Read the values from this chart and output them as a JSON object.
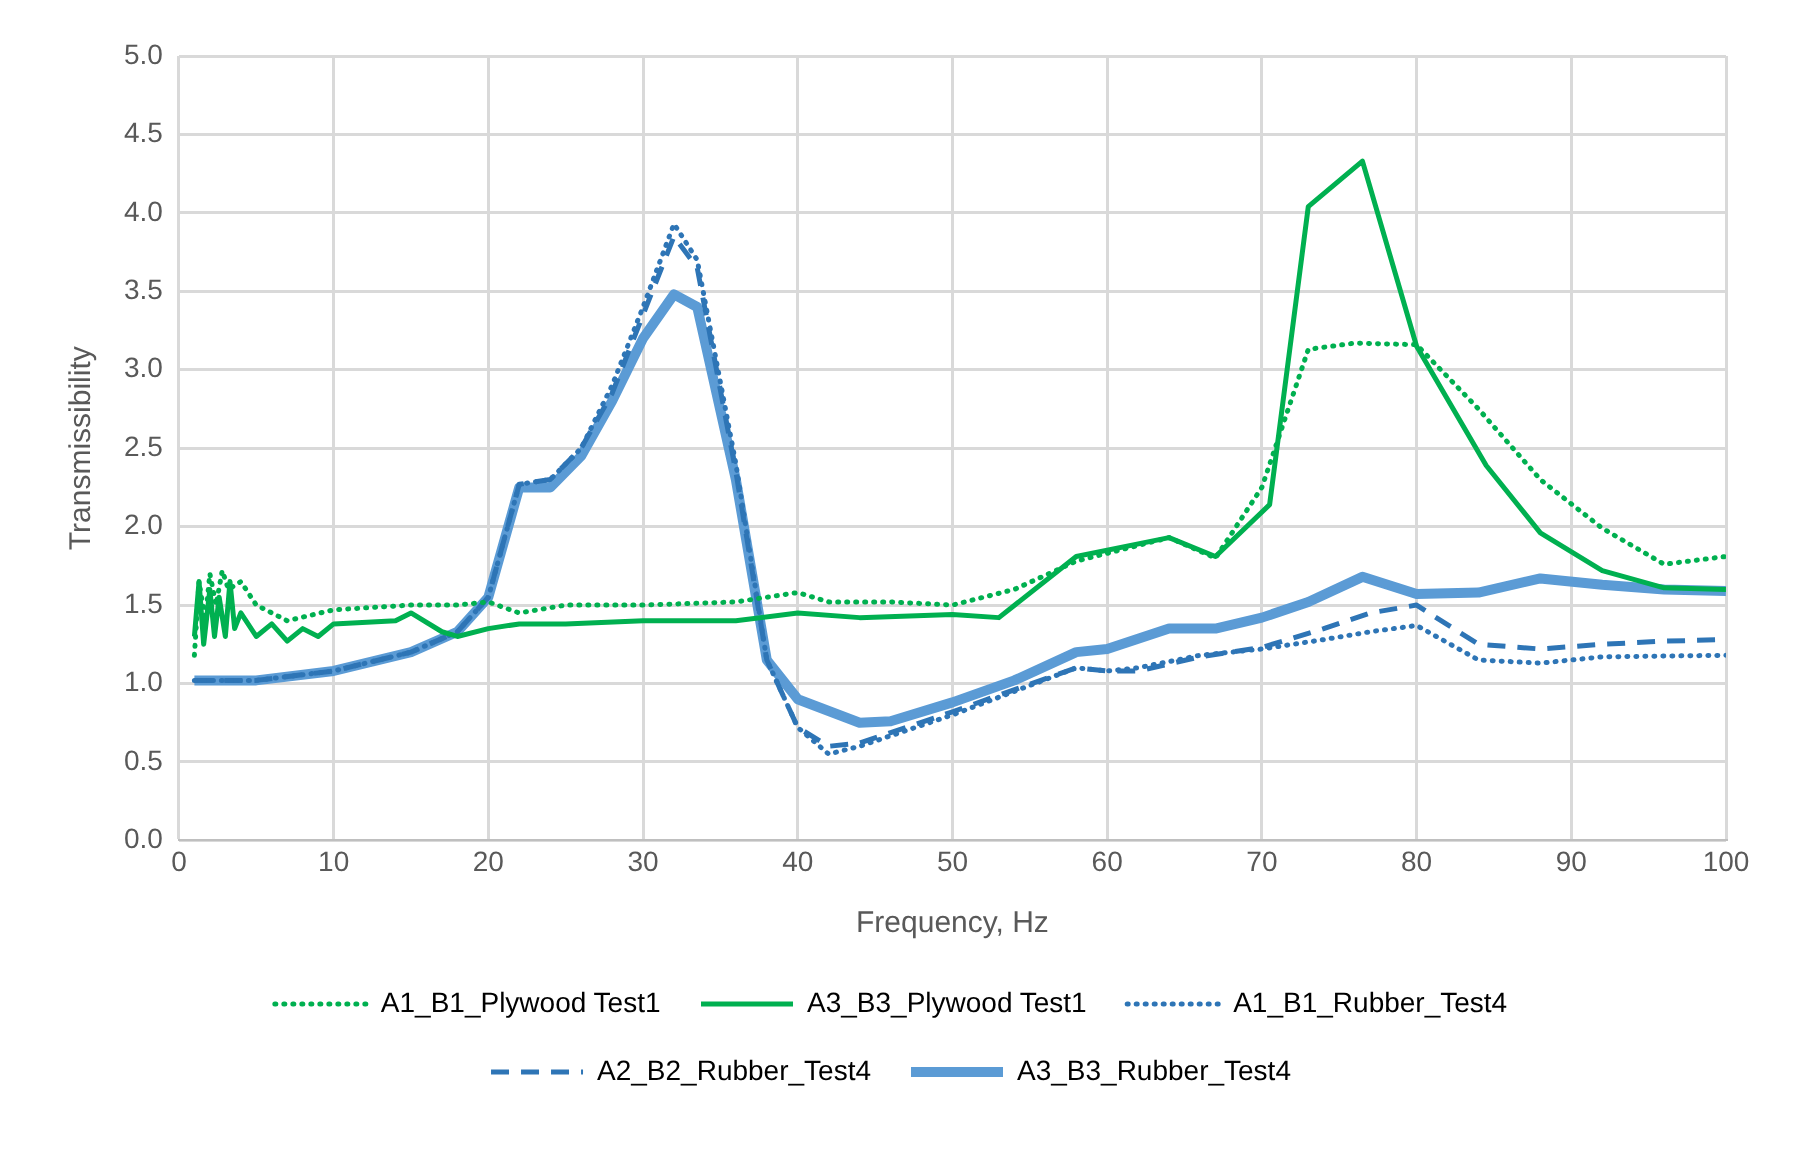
{
  "chart_data": {
    "type": "line",
    "xlabel": "Frequency, Hz",
    "ylabel": "Transmissibility",
    "xlim": [
      0,
      100
    ],
    "xticks": [
      0,
      10,
      20,
      30,
      40,
      50,
      60,
      70,
      80,
      90,
      100
    ],
    "ylim": [
      0,
      5
    ],
    "yticks": [
      {
        "value": 0,
        "label": "0.0"
      },
      {
        "value": 0.5,
        "label": "0.5"
      },
      {
        "value": 1,
        "label": "1.0"
      },
      {
        "value": 1.5,
        "label": "1.5"
      },
      {
        "value": 2,
        "label": "2.0"
      },
      {
        "value": 2.5,
        "label": "2.5"
      },
      {
        "value": 3,
        "label": "3.0"
      },
      {
        "value": 3.5,
        "label": "3.5"
      },
      {
        "value": 4,
        "label": "4.0"
      },
      {
        "value": 4.5,
        "label": "4.5"
      },
      {
        "value": 5,
        "label": "5.0"
      }
    ],
    "grid": true,
    "legend": "bottom",
    "marker": "none",
    "series": [
      {
        "name": "A1_B1_Plywood Test1",
        "color": "#00b050",
        "line_style": "dotted",
        "x": [
          1,
          1.3,
          1.7,
          2,
          2.4,
          2.8,
          3.2,
          4,
          5,
          7,
          10,
          15,
          18,
          20,
          22,
          25,
          30,
          36,
          38,
          40,
          42,
          46,
          50,
          54,
          58,
          60,
          64,
          67,
          70,
          73,
          76,
          80,
          84,
          88,
          92,
          96,
          100
        ],
        "values": [
          1.18,
          1.65,
          1.4,
          1.7,
          1.5,
          1.72,
          1.6,
          1.65,
          1.5,
          1.4,
          1.47,
          1.5,
          1.5,
          1.52,
          1.45,
          1.5,
          1.5,
          1.52,
          1.55,
          1.58,
          1.52,
          1.52,
          1.5,
          1.6,
          1.78,
          1.83,
          1.93,
          1.8,
          2.25,
          3.13,
          3.17,
          3.16,
          2.75,
          2.3,
          1.99,
          1.76,
          1.81
        ]
      },
      {
        "name": "A3_B3_Plywood Test1",
        "color": "#00b050",
        "line_style": "solid",
        "x": [
          1,
          1.3,
          1.6,
          2,
          2.3,
          2.6,
          3,
          3.3,
          3.6,
          4,
          5,
          6,
          7,
          8,
          9,
          10,
          14,
          15,
          17,
          18,
          20,
          22,
          25,
          30,
          36,
          40,
          44,
          50,
          53,
          58,
          64,
          67,
          70.5,
          73,
          76.5,
          80,
          84.5,
          88,
          92,
          96,
          100
        ],
        "values": [
          1.3,
          1.65,
          1.25,
          1.6,
          1.3,
          1.55,
          1.3,
          1.65,
          1.35,
          1.45,
          1.3,
          1.38,
          1.27,
          1.35,
          1.3,
          1.38,
          1.4,
          1.45,
          1.33,
          1.3,
          1.35,
          1.38,
          1.38,
          1.4,
          1.4,
          1.45,
          1.42,
          1.44,
          1.42,
          1.81,
          1.93,
          1.81,
          2.14,
          4.04,
          4.33,
          3.15,
          2.39,
          1.96,
          1.72,
          1.61,
          1.6
        ]
      },
      {
        "name": "A1_B1_Rubber_Test4",
        "color": "#2e75b6",
        "line_style": "dotted",
        "x": [
          1,
          5,
          10,
          15,
          18,
          20,
          22,
          24,
          26,
          28,
          30,
          32,
          33.5,
          36,
          38,
          40,
          42,
          44,
          50,
          58,
          60,
          62,
          66,
          70,
          74,
          77,
          80,
          84,
          88,
          92,
          100
        ],
        "values": [
          1.02,
          1.02,
          1.08,
          1.2,
          1.33,
          1.55,
          2.27,
          2.3,
          2.5,
          2.9,
          3.4,
          3.93,
          3.7,
          2.4,
          1.15,
          0.72,
          0.55,
          0.6,
          0.8,
          1.1,
          1.08,
          1.1,
          1.18,
          1.22,
          1.28,
          1.33,
          1.37,
          1.15,
          1.13,
          1.17,
          1.18
        ]
      },
      {
        "name": "A2_B2_Rubber_Test4",
        "color": "#2e75b6",
        "line_style": "dashed",
        "x": [
          1,
          5,
          10,
          15,
          18,
          20,
          22,
          24,
          26,
          28,
          30,
          32,
          33.5,
          36,
          38,
          40,
          42,
          44,
          50,
          58,
          60,
          62,
          66,
          70,
          74,
          77,
          80,
          84,
          88,
          92,
          96,
          100
        ],
        "values": [
          1.02,
          1.02,
          1.08,
          1.2,
          1.33,
          1.55,
          2.27,
          2.3,
          2.5,
          2.85,
          3.35,
          3.85,
          3.65,
          2.35,
          1.15,
          0.72,
          0.6,
          0.62,
          0.82,
          1.1,
          1.08,
          1.08,
          1.17,
          1.23,
          1.35,
          1.45,
          1.5,
          1.25,
          1.22,
          1.25,
          1.27,
          1.28
        ]
      },
      {
        "name": "A3_B3_Rubber_Test4",
        "color": "#5b9bd5",
        "line_style": "solid",
        "x": [
          1,
          5,
          10,
          15,
          18,
          20,
          22,
          24,
          26,
          28,
          30,
          32,
          33.5,
          36,
          38,
          40,
          44,
          46,
          50,
          54,
          58,
          60,
          64,
          67,
          70,
          73,
          76.5,
          80,
          84,
          88,
          92,
          96,
          100
        ],
        "values": [
          1.02,
          1.02,
          1.08,
          1.2,
          1.33,
          1.55,
          2.25,
          2.25,
          2.45,
          2.8,
          3.2,
          3.48,
          3.4,
          2.3,
          1.15,
          0.9,
          0.75,
          0.76,
          0.88,
          1.02,
          1.2,
          1.22,
          1.35,
          1.35,
          1.42,
          1.52,
          1.68,
          1.57,
          1.58,
          1.67,
          1.63,
          1.6,
          1.59
        ]
      }
    ]
  }
}
